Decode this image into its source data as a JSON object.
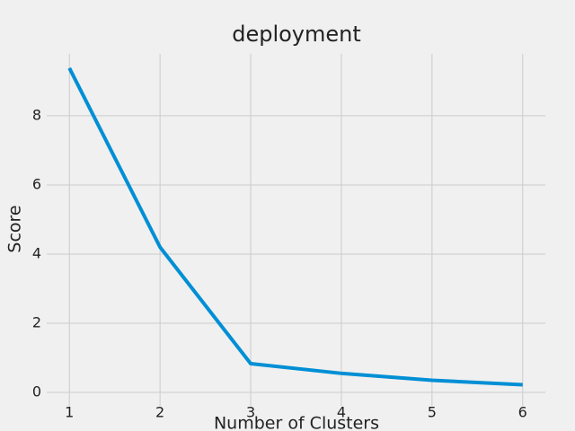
{
  "chart_data": {
    "type": "line",
    "title": "deployment",
    "x_label": "Number of Clusters",
    "y_label": "Score",
    "x": [
      1,
      2,
      3,
      4,
      5,
      6
    ],
    "series": [
      {
        "name": "Score",
        "color": "#008fd5",
        "values": [
          9.38,
          4.2,
          0.83,
          0.55,
          0.35,
          0.22
        ]
      }
    ],
    "xlim": [
      0.75,
      6.25
    ],
    "xticks": [
      1,
      2,
      3,
      4,
      5,
      6
    ],
    "ylim": [
      -0.39,
      9.79
    ],
    "yticks": [
      0,
      2,
      4,
      6,
      8
    ],
    "grid": true
  }
}
